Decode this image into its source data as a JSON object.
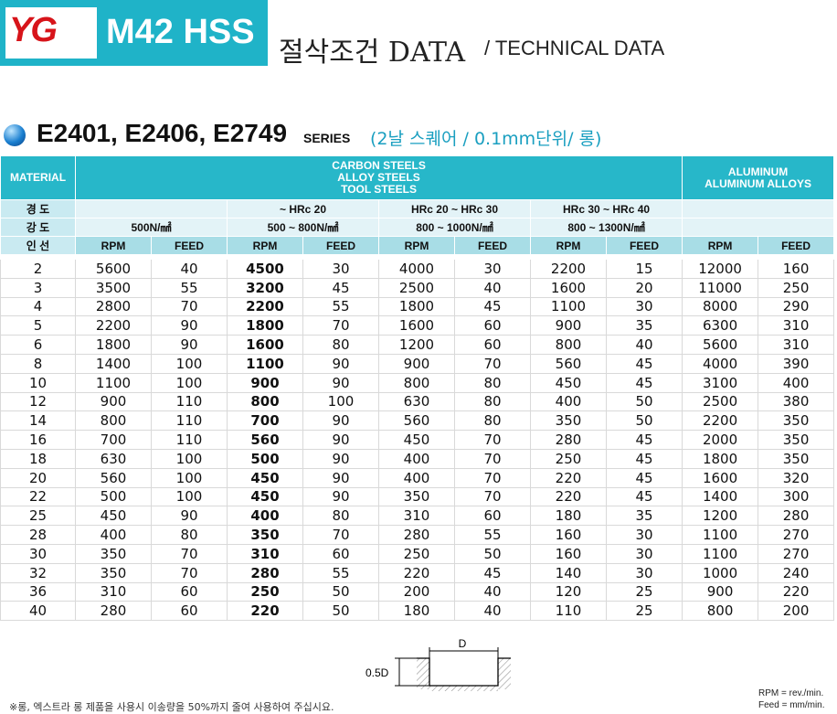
{
  "header": {
    "logo": "YG",
    "product": "M42 HSS",
    "title": "절삭조건 DATA",
    "subtitle": "/ TECHNICAL DATA"
  },
  "series": {
    "codes": "E2401, E2406, E2749",
    "label": "SERIES",
    "note": "(2날 스퀘어 / 0.1mm단위/ 롱)"
  },
  "table": {
    "material_label": "MATERIAL",
    "groups": [
      [
        "CARBON STEELS",
        "ALLOY STEELS",
        "TOOL STEELS"
      ],
      [
        "ALUMINUM",
        "ALUMINUM ALLOYS"
      ]
    ],
    "hardness_label": "경 도",
    "hardness": [
      "~ HRc 20",
      "HRc 20 ~ HRc 30",
      "HRc 30 ~ HRc 40"
    ],
    "strength_label": "강 도",
    "strength": [
      "500N/㎟",
      "500 ~ 800N/㎟",
      "800 ~ 1000N/㎟",
      "800 ~ 1300N/㎟"
    ],
    "diameter_label": "인 선",
    "columns": [
      "RPM",
      "FEED"
    ],
    "rows": [
      [
        2,
        5600,
        40,
        4500,
        30,
        4000,
        30,
        2200,
        15,
        12000,
        160
      ],
      [
        3,
        3500,
        55,
        3200,
        45,
        2500,
        40,
        1600,
        20,
        11000,
        250
      ],
      [
        4,
        2800,
        70,
        2200,
        55,
        1800,
        45,
        1100,
        30,
        8000,
        290
      ],
      [
        5,
        2200,
        90,
        1800,
        70,
        1600,
        60,
        900,
        35,
        6300,
        310
      ],
      [
        6,
        1800,
        90,
        1600,
        80,
        1200,
        60,
        800,
        40,
        5600,
        310
      ],
      [
        8,
        1400,
        100,
        1100,
        90,
        900,
        70,
        560,
        45,
        4000,
        390
      ],
      [
        10,
        1100,
        100,
        900,
        90,
        800,
        80,
        450,
        45,
        3100,
        400
      ],
      [
        12,
        900,
        110,
        800,
        100,
        630,
        80,
        400,
        50,
        2500,
        380
      ],
      [
        14,
        800,
        110,
        700,
        90,
        560,
        80,
        350,
        50,
        2200,
        350
      ],
      [
        16,
        700,
        110,
        560,
        90,
        450,
        70,
        280,
        45,
        2000,
        350
      ],
      [
        18,
        630,
        100,
        500,
        90,
        400,
        70,
        250,
        45,
        1800,
        350
      ],
      [
        20,
        560,
        100,
        450,
        90,
        400,
        70,
        220,
        45,
        1600,
        320
      ],
      [
        22,
        500,
        100,
        450,
        90,
        350,
        70,
        220,
        45,
        1400,
        300
      ],
      [
        25,
        450,
        90,
        400,
        80,
        310,
        60,
        180,
        35,
        1200,
        280
      ],
      [
        28,
        400,
        80,
        350,
        70,
        280,
        55,
        160,
        30,
        1100,
        270
      ],
      [
        30,
        350,
        70,
        310,
        60,
        250,
        50,
        160,
        30,
        1100,
        270
      ],
      [
        32,
        350,
        70,
        280,
        55,
        220,
        45,
        140,
        30,
        1000,
        240
      ],
      [
        36,
        310,
        60,
        250,
        50,
        200,
        40,
        120,
        25,
        900,
        220
      ],
      [
        40,
        280,
        60,
        220,
        50,
        180,
        40,
        110,
        25,
        800,
        200
      ]
    ]
  },
  "diagram": {
    "width": "D",
    "depth": "0.5D"
  },
  "footnote": "※롱, 엑스트라 롱 제품을 사용시 이송량을 50%까지 줄여 사용하여 주십시요.",
  "legend": [
    "RPM = rev./min.",
    "Feed = mm/min."
  ]
}
